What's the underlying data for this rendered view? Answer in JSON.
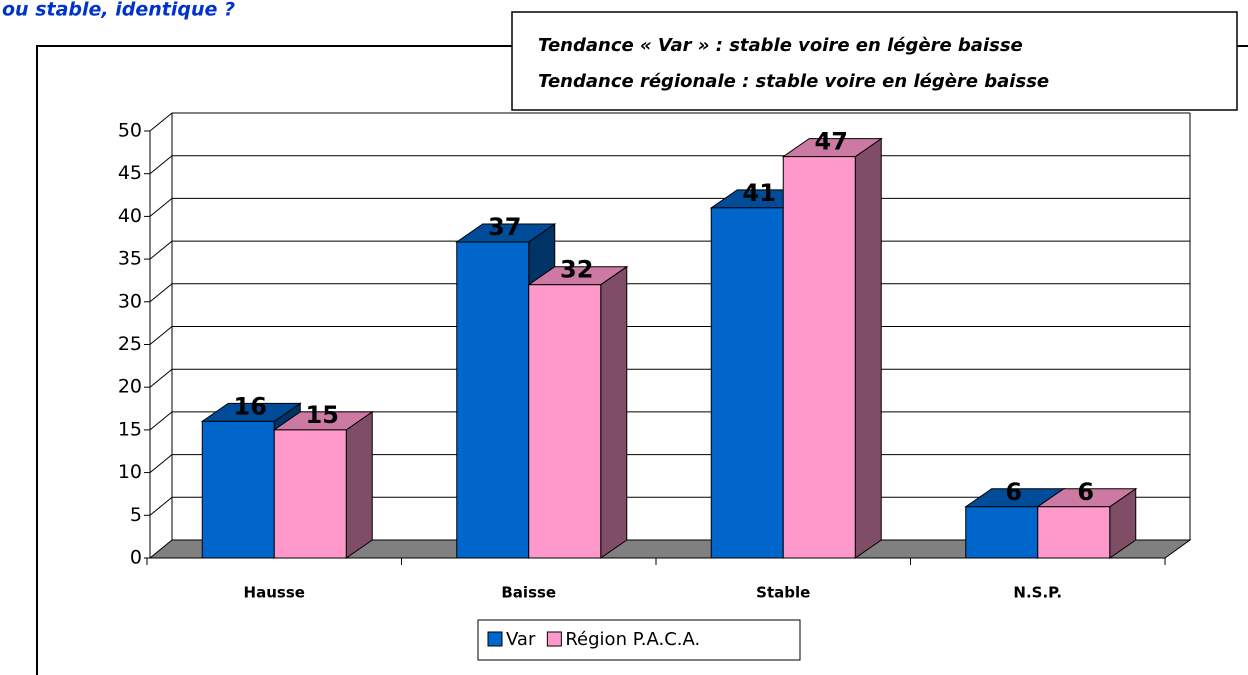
{
  "chart_data": {
    "type": "bar3d",
    "title": "ou stable, identique ?",
    "annotations": [
      "Tendance « Var » : stable voire en légère baisse",
      "Tendance régionale : stable voire en légère baisse"
    ],
    "categories": [
      "Hausse",
      "Baisse",
      "Stable",
      "N.S.P."
    ],
    "series": [
      {
        "name": "Var",
        "color": "#0066cc",
        "values": [
          16,
          37,
          41,
          6
        ]
      },
      {
        "name": "Région P.A.C.A.",
        "color": "#ff99cc",
        "values": [
          15,
          32,
          47,
          6
        ]
      }
    ],
    "ylim": [
      0,
      50
    ],
    "yticks": [
      0,
      5,
      10,
      15,
      20,
      25,
      30,
      35,
      40,
      45,
      50
    ],
    "grid": true
  }
}
